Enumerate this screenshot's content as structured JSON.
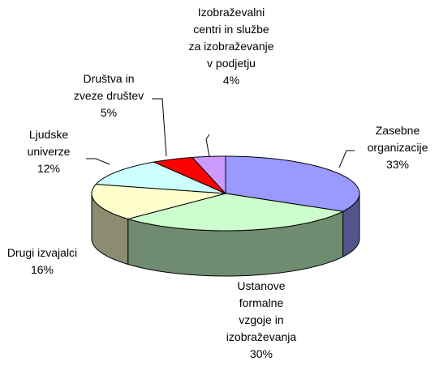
{
  "chart_data": {
    "type": "pie3d",
    "categories": [
      "Zasebne organizacije",
      "Ustanove formalne vzgoje in izobraževanja",
      "Drugi izvajalci",
      "Ljudske univerze",
      "Društva in zveze društev",
      "Izobraževalni centri in službe za izobraževanje v podjetju"
    ],
    "values": [
      33,
      30,
      16,
      12,
      5,
      4
    ],
    "value_labels": [
      "33%",
      "30%",
      "16%",
      "12%",
      "5%",
      "4%"
    ],
    "colors": [
      "#9999ff",
      "#ccffcc",
      "#ffffcc",
      "#ccffff",
      "#ff0000",
      "#cc99ff"
    ]
  }
}
